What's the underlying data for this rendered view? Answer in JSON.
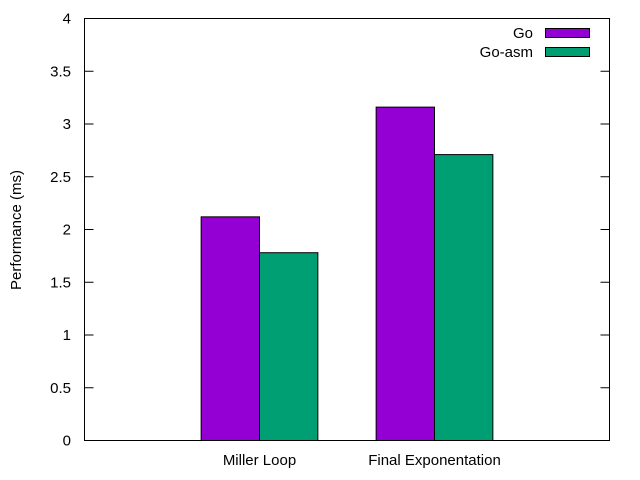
{
  "chart_data": {
    "type": "bar",
    "title": "",
    "xlabel": "",
    "ylabel": "Performance (ms)",
    "ylim": [
      0,
      4
    ],
    "yticks": [
      "0",
      "0.5",
      "1",
      "1.5",
      "2",
      "2.5",
      "3",
      "3.5",
      "4"
    ],
    "categories": [
      "Miller Loop",
      "Final Exponentation"
    ],
    "series": [
      {
        "name": "Go",
        "color": "#9400d3",
        "values": [
          2.12,
          3.16
        ]
      },
      {
        "name": "Go-asm",
        "color": "#009e73",
        "values": [
          1.78,
          2.71
        ]
      }
    ],
    "grid": false,
    "legend_position": "top-right"
  }
}
